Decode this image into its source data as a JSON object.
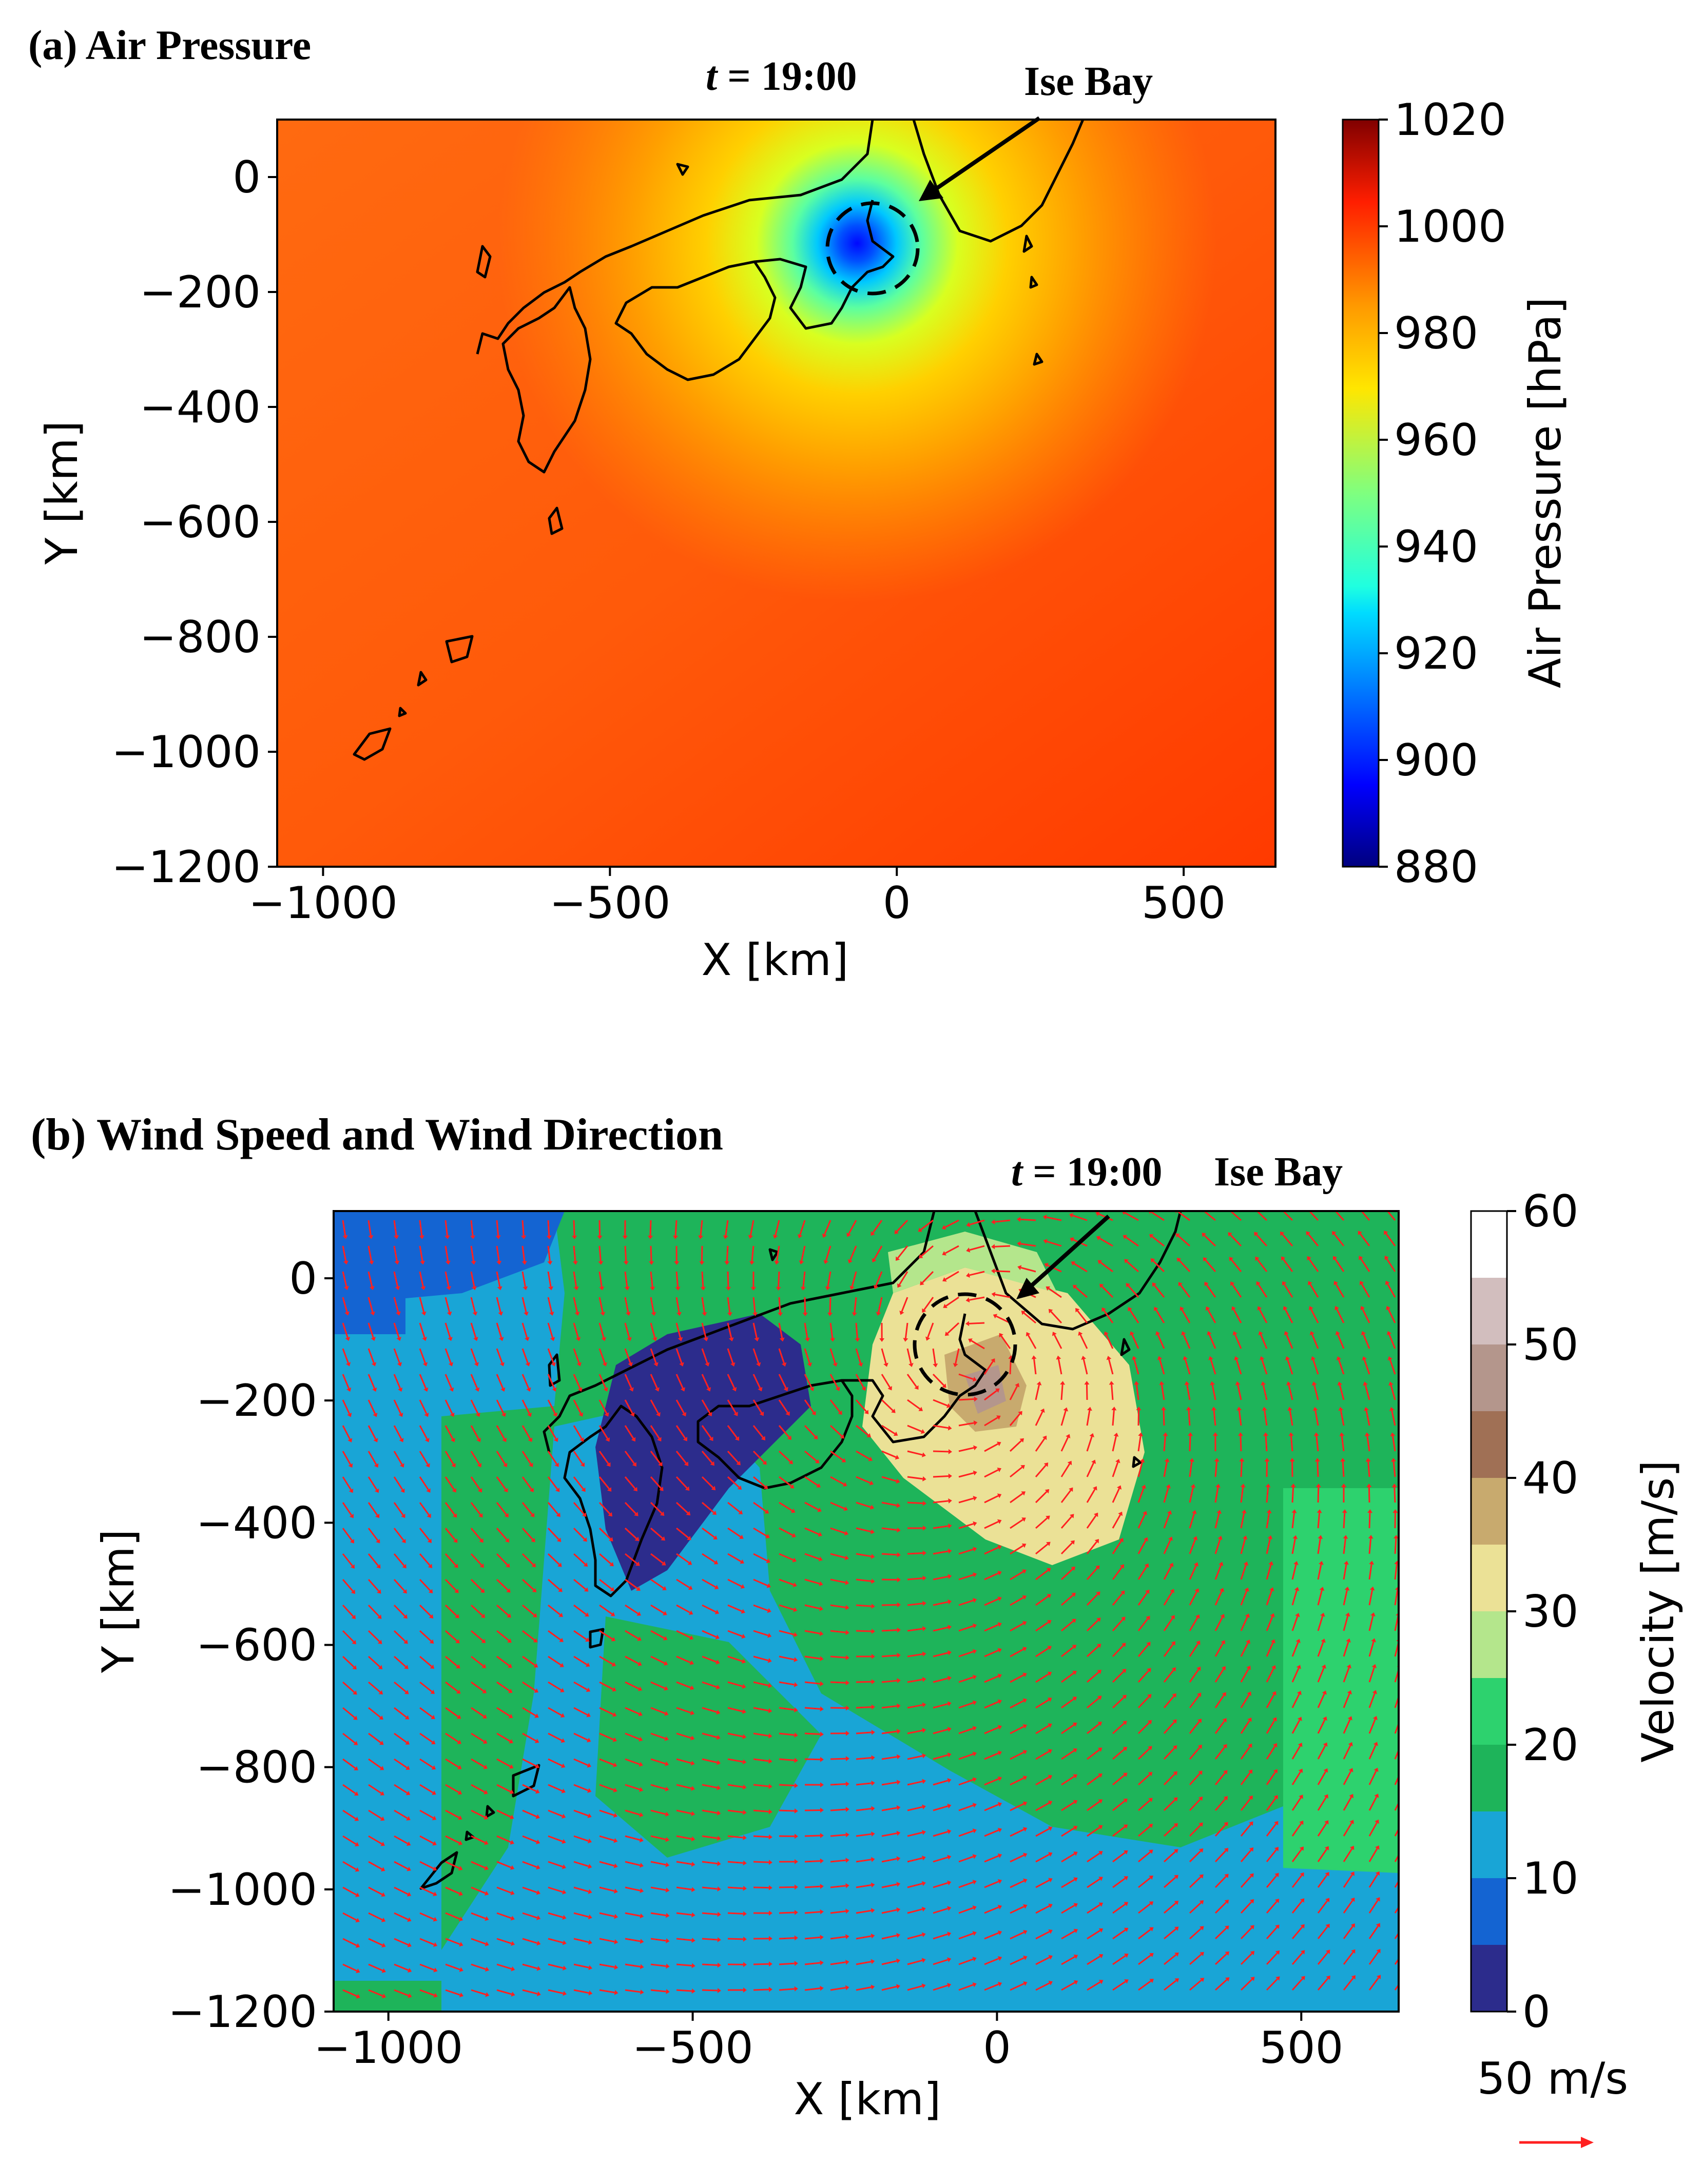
{
  "figure": {
    "panel_a": {
      "heading": "(a) Air Pressure",
      "time_label_t": "t",
      "time_label_rest": " = 19:00",
      "annotation": "Ise Bay",
      "xlabel": "X [km]",
      "ylabel": "Y [km]",
      "colorbar_label": "Air Pressure [hPa]"
    },
    "panel_b": {
      "heading": "(b) Wind Speed and Wind Direction",
      "time_label_t": "t",
      "time_label_rest": " = 19:00",
      "annotation": "Ise Bay",
      "xlabel": "X [km]",
      "ylabel": "Y [km]",
      "colorbar_label": "Velocity [m/s]",
      "quiver_key": "50 m/s"
    }
  },
  "chart_data": [
    {
      "type": "heatmap",
      "title": "(a) Air Pressure",
      "quantity": "Air Pressure",
      "unit": "hPa",
      "xlabel": "X [km]",
      "ylabel": "Y [km]",
      "xlim": [
        -1080,
        660
      ],
      "ylim": [
        -1200,
        100
      ],
      "xticks": [
        -1000,
        -500,
        0,
        500
      ],
      "yticks": [
        0,
        -200,
        -400,
        -600,
        -800,
        -1000,
        -1200
      ],
      "colorbar": {
        "label": "Air Pressure [hPa]",
        "range": [
          880,
          1020
        ],
        "ticks": [
          1020,
          1000,
          980,
          960,
          940,
          920,
          900,
          880
        ],
        "colormap": "jet"
      },
      "background_value": 992,
      "min_center": {
        "x": -75,
        "y": -115,
        "value": 905
      },
      "time": "t = 19:00",
      "annotation": {
        "text": "Ise Bay",
        "points_to": {
          "x": -40,
          "y": -115
        }
      }
    },
    {
      "type": "heatmap",
      "title": "(b) Wind Speed and Wind Direction",
      "quantity": "Velocity",
      "unit": "m/s",
      "xlabel": "X [km]",
      "ylabel": "Y [km]",
      "xlim": [
        -1090,
        660
      ],
      "ylim": [
        -1200,
        110
      ],
      "xticks": [
        -1000,
        -500,
        0,
        500
      ],
      "yticks": [
        0,
        -200,
        -400,
        -600,
        -800,
        -1000,
        -1200
      ],
      "colorbar": {
        "label": "Velocity [m/s]",
        "range": [
          0,
          60
        ],
        "ticks": [
          60,
          50,
          40,
          30,
          20,
          10,
          0
        ],
        "levels": [
          0,
          5,
          10,
          15,
          20,
          25,
          30,
          35,
          40,
          45,
          50,
          55,
          60
        ],
        "colors": [
          "#2c2c8c",
          "#1464d2",
          "#19a5d6",
          "#1eb45a",
          "#2dd26e",
          "#b4e68c",
          "#ebe196",
          "#c8aa6e",
          "#a07055",
          "#b4968c",
          "#d2bebe",
          "#ffffff"
        ]
      },
      "vectors": {
        "type": "quiver",
        "color": "#ff2020",
        "key": "50 m/s",
        "center": {
          "x": -40,
          "y": -130
        }
      },
      "time": "t = 19:00",
      "annotation": {
        "text": "Ise Bay",
        "points_to": {
          "x": -40,
          "y": -130
        }
      }
    }
  ]
}
